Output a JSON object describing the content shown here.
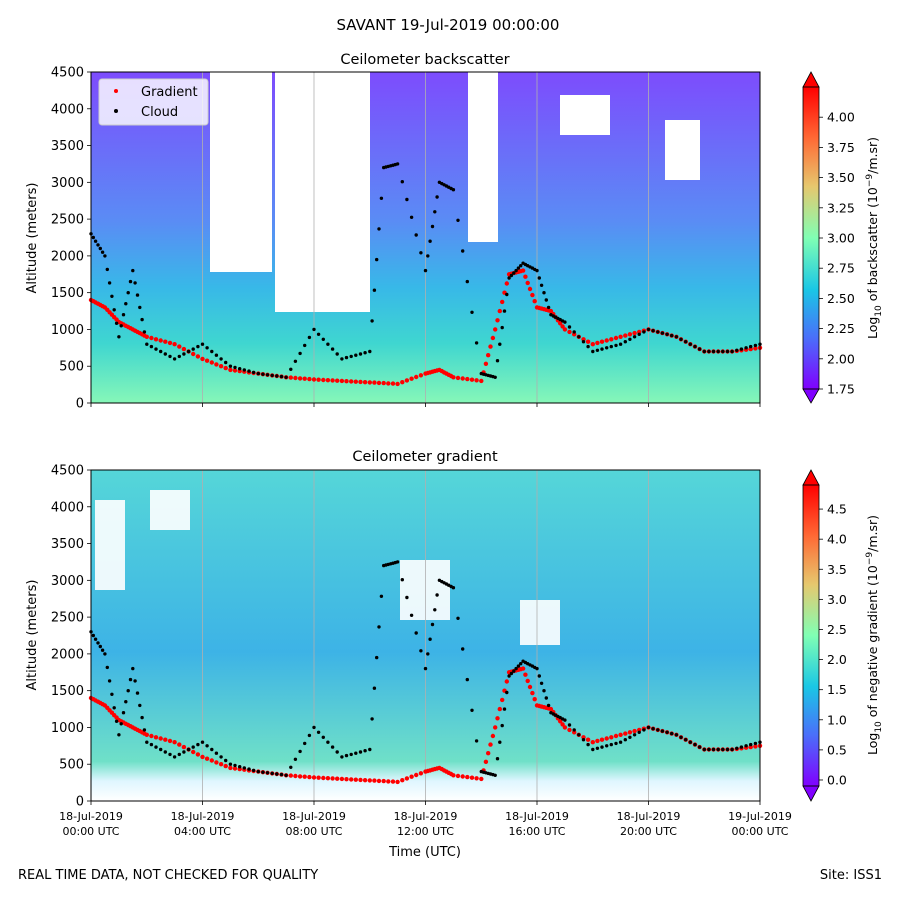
{
  "suptitle": "SAVANT 19-Jul-2019 00:00:00",
  "footer": {
    "left": "REAL TIME DATA, NOT CHECKED FOR QUALITY",
    "right": "Site: ISS1"
  },
  "chart_data": [
    {
      "type": "heatmap",
      "title": "Ceilometer backscatter",
      "ylabel": "Altitude (meters)",
      "ylim": [
        0,
        4500
      ],
      "yticks": [
        0,
        500,
        1000,
        1500,
        2000,
        2500,
        3000,
        3500,
        4000,
        4500
      ],
      "x_range": [
        "2019-07-18 00:00",
        "2019-07-19 00:00"
      ],
      "x_tick_labels_shown": false,
      "grid": "x",
      "legend": {
        "placement": "upper-left",
        "entries": [
          {
            "name": "Gradient",
            "color": "#ff0000"
          },
          {
            "name": "Cloud",
            "color": "#000000"
          }
        ]
      },
      "colorbar": {
        "label": "Log10 of backscatter (10^-9/m.sr)",
        "label_parts": [
          "Log",
          "10",
          " of backscatter (10",
          "−9",
          "/m.sr)"
        ],
        "min": 1.75,
        "max": 4.25,
        "ticks": [
          "1.75",
          "2.00",
          "2.25",
          "2.50",
          "2.75",
          "3.00",
          "3.25",
          "3.50",
          "3.75",
          "4.00"
        ],
        "colormap": "rainbow",
        "extend": "both"
      },
      "series": [
        {
          "name": "Gradient",
          "color": "#ff0000",
          "marker": "dot",
          "x_hours": [
            0,
            0.5,
            1,
            1.5,
            2,
            3,
            4,
            5,
            6,
            7,
            8,
            9,
            10,
            11,
            12,
            12.5,
            13,
            14,
            14.5,
            15,
            15.5,
            16,
            16.5,
            17,
            18,
            19,
            20,
            21,
            22,
            23,
            24
          ],
          "y": [
            1400,
            1300,
            1100,
            1000,
            900,
            800,
            600,
            450,
            400,
            350,
            320,
            300,
            280,
            260,
            400,
            450,
            350,
            300,
            1000,
            1750,
            1800,
            1300,
            1250,
            1000,
            800,
            900,
            1000,
            900,
            700,
            700,
            750
          ]
        },
        {
          "name": "Cloud",
          "color": "#000000",
          "marker": "dot",
          "x_hours": [
            0,
            0.5,
            1,
            1.5,
            2,
            3,
            4,
            5,
            6,
            7,
            8,
            9,
            10,
            10.5,
            11,
            12,
            12.5,
            13,
            14,
            14.5,
            15,
            15.5,
            16,
            16.5,
            17,
            18,
            19,
            20,
            21,
            22,
            23,
            24
          ],
          "y": [
            2300,
            2000,
            900,
            1800,
            800,
            600,
            800,
            500,
            400,
            350,
            1000,
            600,
            700,
            3200,
            3250,
            1800,
            3000,
            2900,
            400,
            350,
            1700,
            1900,
            1800,
            1200,
            1100,
            700,
            800,
            1000,
            900,
            700,
            700,
            800
          ]
        }
      ]
    },
    {
      "type": "heatmap",
      "title": "Ceilometer gradient",
      "ylabel": "Altitude (meters)",
      "xlabel": "Time (UTC)",
      "ylim": [
        0,
        4500
      ],
      "yticks": [
        0,
        500,
        1000,
        1500,
        2000,
        2500,
        3000,
        3500,
        4000,
        4500
      ],
      "x_range": [
        "2019-07-18 00:00",
        "2019-07-19 00:00"
      ],
      "x_tick_labels": [
        [
          "18-Jul-2019",
          "00:00 UTC"
        ],
        [
          "18-Jul-2019",
          "04:00 UTC"
        ],
        [
          "18-Jul-2019",
          "08:00 UTC"
        ],
        [
          "18-Jul-2019",
          "12:00 UTC"
        ],
        [
          "18-Jul-2019",
          "16:00 UTC"
        ],
        [
          "18-Jul-2019",
          "20:00 UTC"
        ],
        [
          "19-Jul-2019",
          "00:00 UTC"
        ]
      ],
      "grid": "x",
      "colorbar": {
        "label": "Log10 of negative gradient (10^-9/m.sr)",
        "label_parts": [
          "Log",
          "10",
          " of negative gradient (10",
          "−9",
          "/m.sr)"
        ],
        "min": -0.1,
        "max": 4.9,
        "ticks": [
          "0.0",
          "0.5",
          "1.0",
          "1.5",
          "2.0",
          "2.5",
          "3.0",
          "3.5",
          "4.0",
          "4.5"
        ],
        "colormap": "rainbow",
        "extend": "both"
      },
      "series": [
        {
          "name": "Gradient",
          "color": "#ff0000",
          "marker": "dot",
          "x_hours": [
            0,
            0.5,
            1,
            1.5,
            2,
            3,
            4,
            5,
            6,
            7,
            8,
            9,
            10,
            11,
            12,
            12.5,
            13,
            14,
            14.5,
            15,
            15.5,
            16,
            16.5,
            17,
            18,
            19,
            20,
            21,
            22,
            23,
            24
          ],
          "y": [
            1400,
            1300,
            1100,
            1000,
            900,
            800,
            600,
            450,
            400,
            350,
            320,
            300,
            280,
            260,
            400,
            450,
            350,
            300,
            1000,
            1750,
            1800,
            1300,
            1250,
            1000,
            800,
            900,
            1000,
            900,
            700,
            700,
            750
          ]
        },
        {
          "name": "Cloud",
          "color": "#000000",
          "marker": "dot",
          "x_hours": [
            0,
            0.5,
            1,
            1.5,
            2,
            3,
            4,
            5,
            6,
            7,
            8,
            9,
            10,
            10.5,
            11,
            12,
            12.5,
            13,
            14,
            14.5,
            15,
            15.5,
            16,
            16.5,
            17,
            18,
            19,
            20,
            21,
            22,
            23,
            24
          ],
          "y": [
            2300,
            2000,
            900,
            1800,
            800,
            600,
            800,
            500,
            400,
            350,
            1000,
            600,
            700,
            3200,
            3250,
            1800,
            3000,
            2900,
            400,
            350,
            1700,
            1900,
            1800,
            1200,
            1100,
            700,
            800,
            1000,
            900,
            700,
            700,
            800
          ]
        }
      ]
    }
  ]
}
